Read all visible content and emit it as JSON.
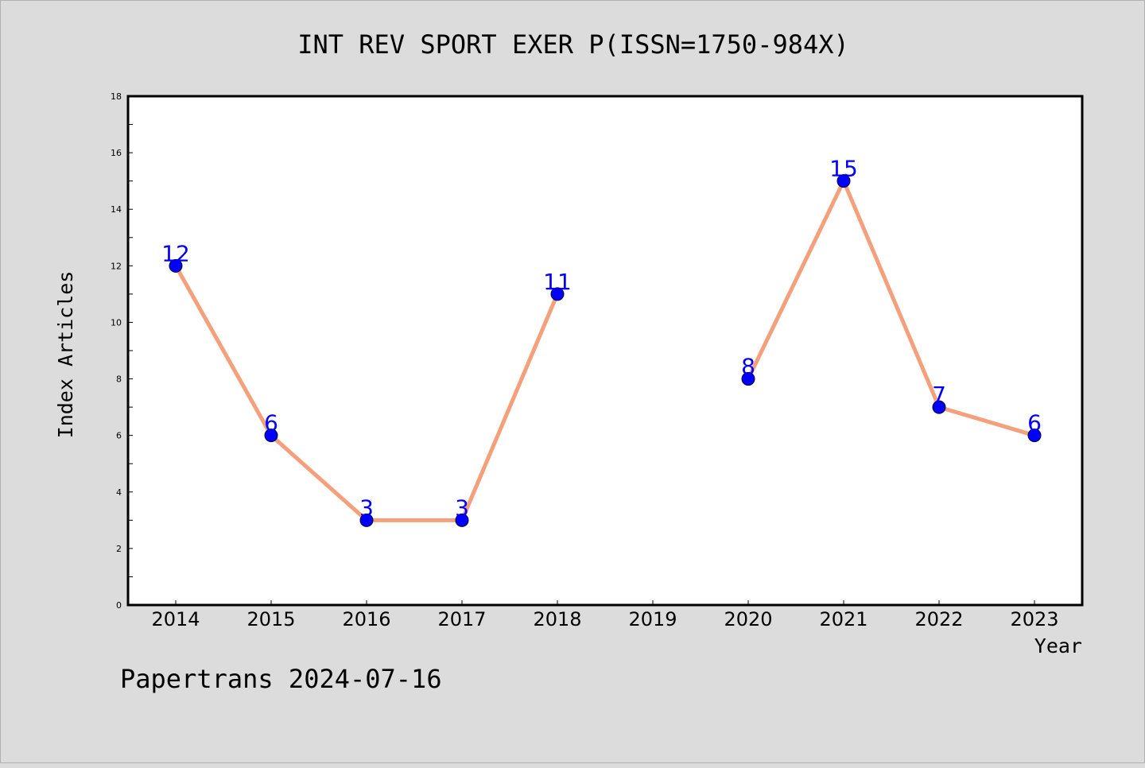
{
  "footer": "Papertrans 2024-07-16",
  "colors": {
    "background": "#dcdcdc",
    "plot_background": "#ffffff",
    "line": "#f4a07c",
    "marker": "#0000ff",
    "label": "#0000ff",
    "axis": "#000000"
  },
  "chart_data": {
    "type": "line",
    "title": "INT REV SPORT EXER P(ISSN=1750-984X)",
    "xlabel": "Year",
    "ylabel": "Index Articles",
    "categories": [
      "2014",
      "2015",
      "2016",
      "2017",
      "2018",
      "2019",
      "2020",
      "2021",
      "2022",
      "2023"
    ],
    "series": [
      {
        "values": [
          12,
          6,
          3,
          3,
          11,
          null,
          8,
          15,
          7,
          6
        ]
      }
    ],
    "ylim": [
      0,
      18
    ],
    "yticks": [
      "0",
      "2",
      "4",
      "6",
      "8",
      "10",
      "12",
      "14",
      "16",
      "18"
    ],
    "grid": false,
    "legend": "none"
  }
}
